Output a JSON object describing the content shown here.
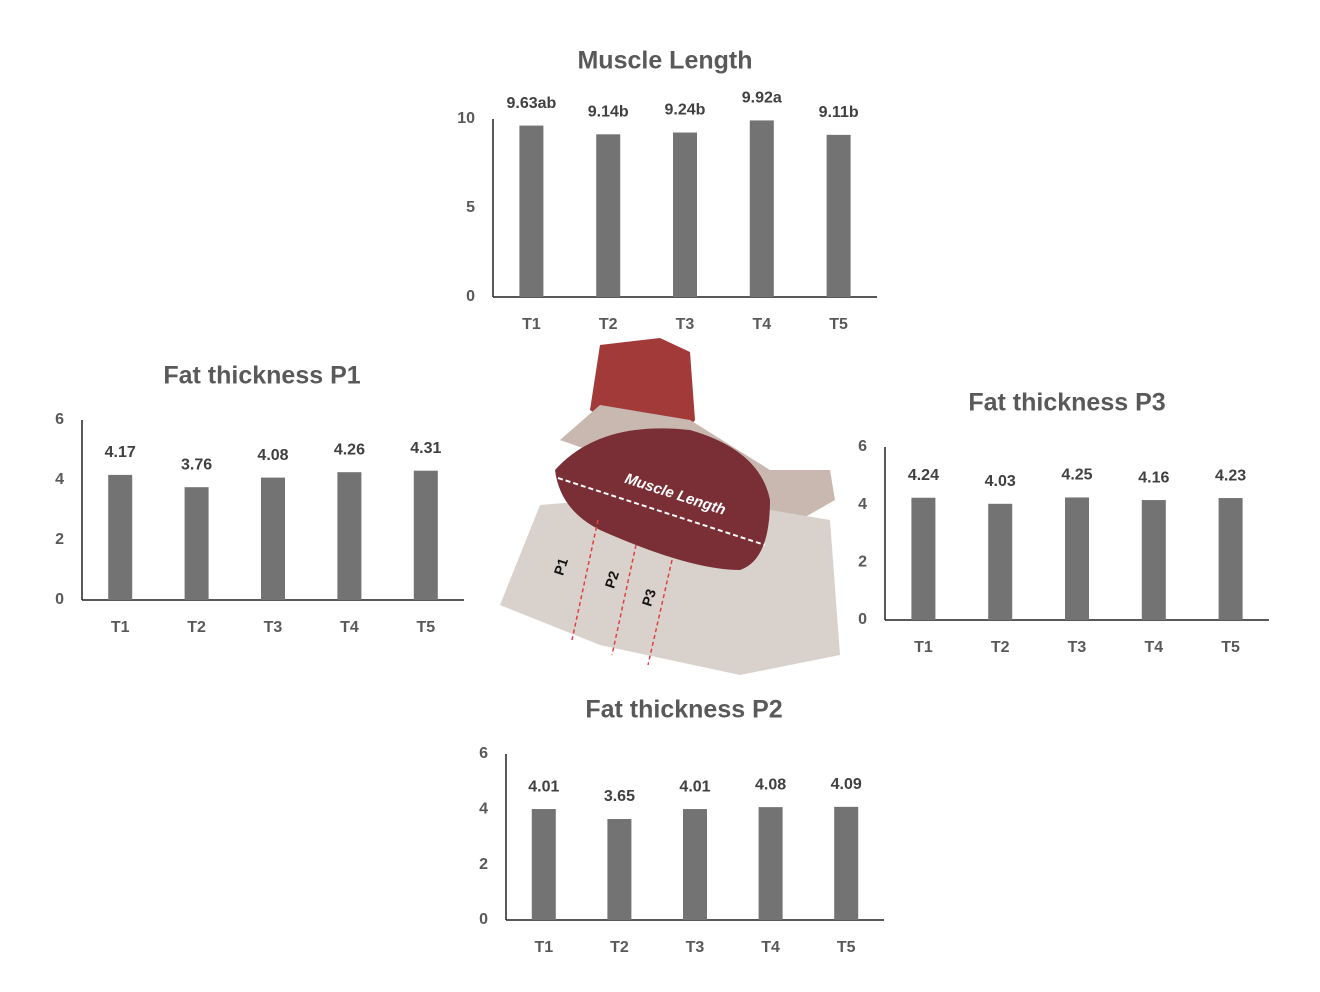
{
  "chart_data": [
    {
      "type": "bar",
      "title": "Muscle Length",
      "categories": [
        "T1",
        "T2",
        "T3",
        "T4",
        "T5"
      ],
      "values": [
        9.63,
        9.14,
        9.24,
        9.92,
        9.11
      ],
      "value_labels": [
        "9.63ab",
        "9.14b",
        "9.24b",
        "9.92a",
        "9.11b"
      ],
      "color": "#737373",
      "ylim": [
        0,
        10
      ],
      "yticks": [
        0,
        5,
        10
      ],
      "grid": false
    },
    {
      "type": "bar",
      "title": "Fat thickness P1",
      "categories": [
        "T1",
        "T2",
        "T3",
        "T4",
        "T5"
      ],
      "values": [
        4.17,
        3.76,
        4.08,
        4.26,
        4.31
      ],
      "color": "#737373",
      "ylim": [
        0,
        6
      ],
      "yticks": [
        0,
        2,
        4,
        6
      ],
      "grid": false
    },
    {
      "type": "bar",
      "title": "Fat thickness P3",
      "categories": [
        "T1",
        "T2",
        "T3",
        "T4",
        "T5"
      ],
      "values": [
        4.24,
        4.03,
        4.25,
        4.16,
        4.23
      ],
      "color": "#737373",
      "ylim": [
        0,
        6
      ],
      "yticks": [
        0,
        2,
        4,
        6
      ],
      "grid": false
    },
    {
      "type": "bar",
      "title": "Fat thickness P2",
      "categories": [
        "T1",
        "T2",
        "T3",
        "T4",
        "T5"
      ],
      "values": [
        4.01,
        3.65,
        4.01,
        4.08,
        4.09
      ],
      "color": "#737373",
      "ylim": [
        0,
        6
      ],
      "yticks": [
        0,
        2,
        4,
        6
      ],
      "grid": false
    }
  ],
  "photo": {
    "labels": [
      "Muscle Length",
      "P1",
      "P2",
      "P3"
    ]
  }
}
